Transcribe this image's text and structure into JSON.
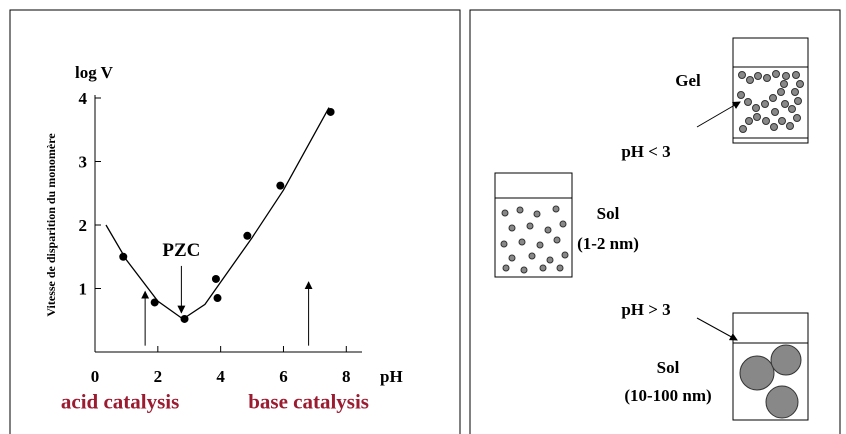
{
  "chart_data": {
    "type": "scatter",
    "ylabel": "Vitesse de disparition du monomère",
    "y_title": "log V",
    "xlabel": "pH",
    "series": [
      {
        "x": [
          0.9,
          1.9,
          2.85,
          3.85,
          3.9,
          4.85,
          5.9,
          7.5
        ],
        "values": [
          1.5,
          0.78,
          0.52,
          1.15,
          0.85,
          1.83,
          2.62,
          3.78
        ],
        "color": "#000000"
      },
      {
        "x": [
          0.35,
          1,
          2,
          2.8,
          3.5,
          4,
          5,
          6,
          7.45
        ],
        "values": [
          2.0,
          1.45,
          0.8,
          0.52,
          0.75,
          1.1,
          1.8,
          2.55,
          3.85
        ],
        "color": "#000000",
        "line": true
      }
    ],
    "xlim": [
      0,
      8.5
    ],
    "ylim": [
      0,
      4
    ],
    "xticks": [
      0,
      2,
      4,
      6,
      8
    ],
    "yticks": [
      1,
      2,
      3,
      4
    ],
    "annotations": [
      {
        "text": "PZC",
        "x": 2.75,
        "y": 1.45,
        "arrow_to": 0.62
      },
      {
        "text": "acid catalysis",
        "x": 0.8,
        "y": -0.45,
        "arrow_from": 0.1,
        "arrow_to": 0.95,
        "color": "#9b1b30"
      },
      {
        "text": "base catalysis",
        "x": 6.8,
        "y": -0.45,
        "arrow_from": 0.1,
        "arrow_to": 1.1,
        "color": "#9b1b30"
      }
    ]
  },
  "diagram": {
    "gel": "Gel",
    "acid": "pH < 3",
    "sol_small": "Sol",
    "sol_small_size": "(1-2 nm)",
    "base": "pH > 3",
    "sol_large": "Sol",
    "sol_large_size": "(10-100 nm)"
  }
}
